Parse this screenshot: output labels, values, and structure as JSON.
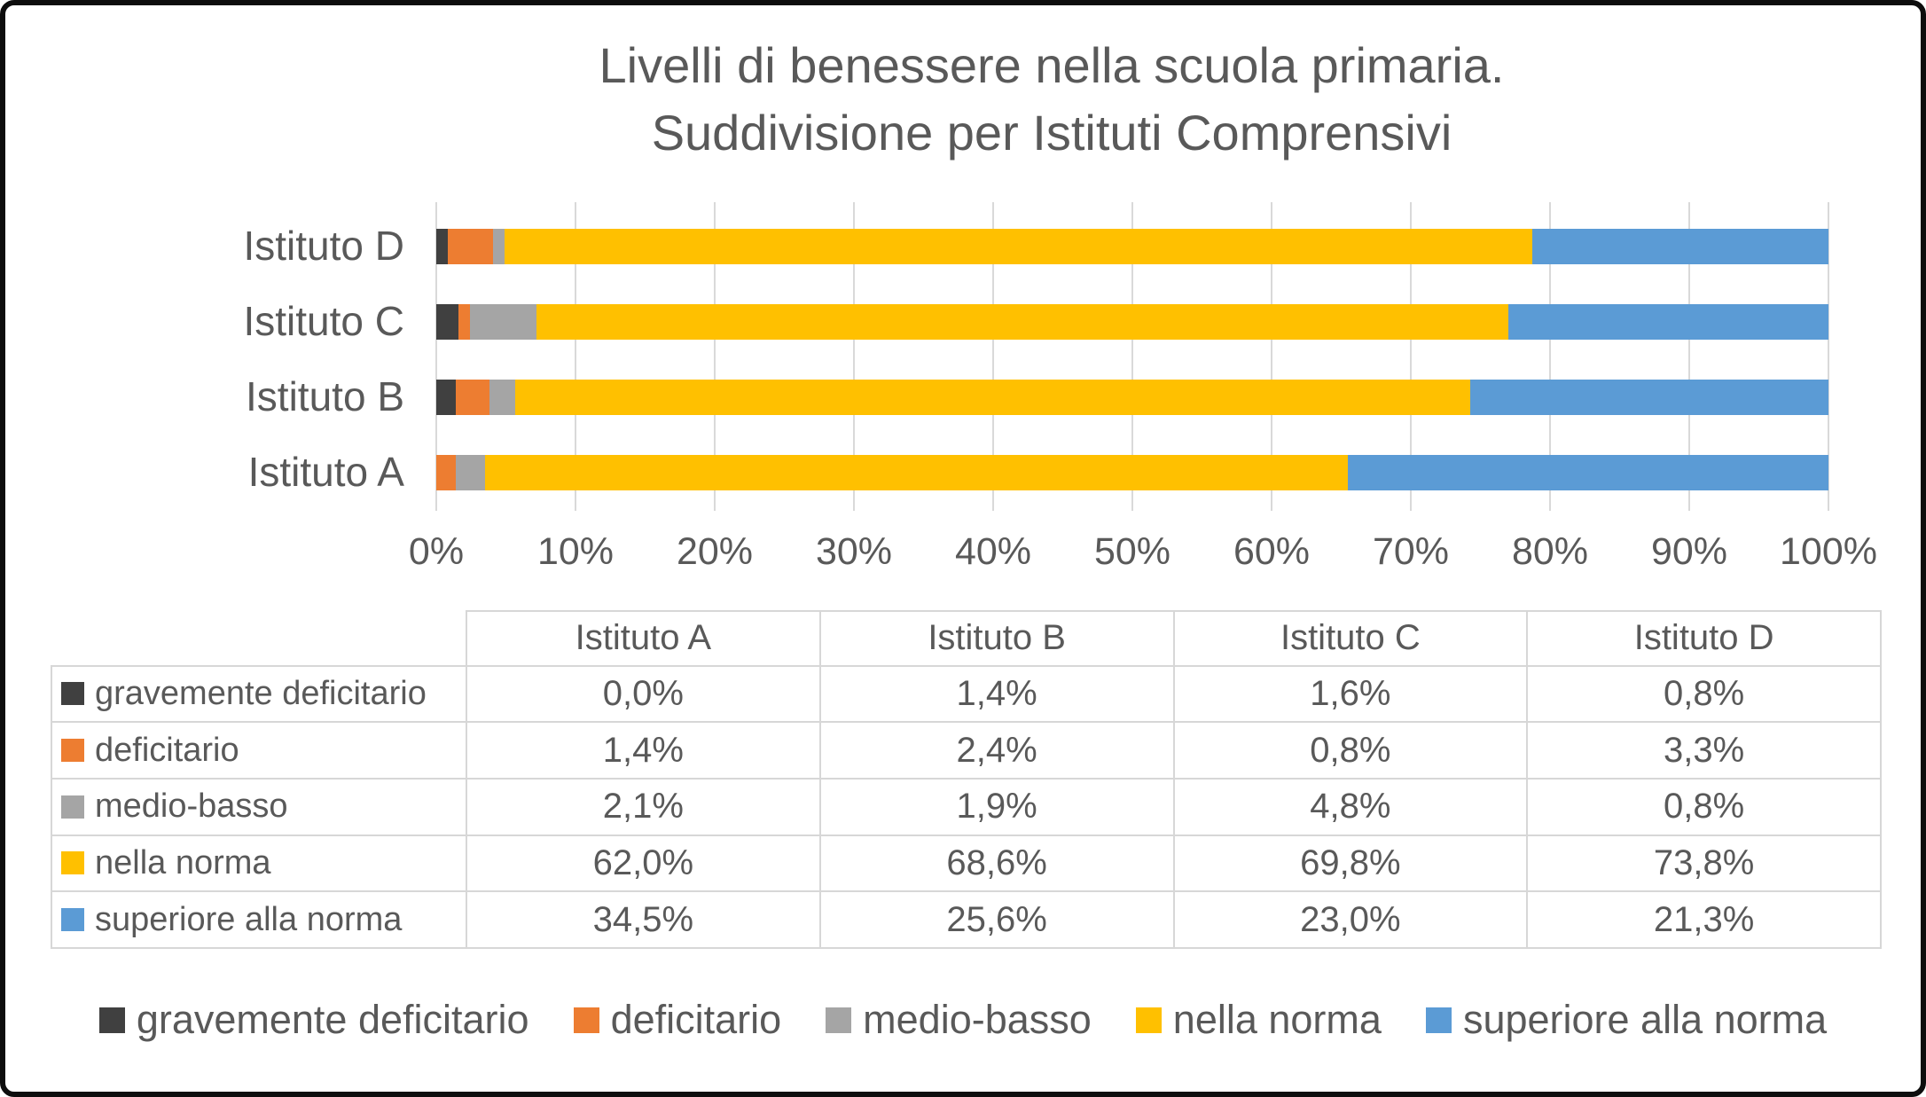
{
  "title": {
    "line1": "Livelli di benessere nella scuola primaria.",
    "line2": "Suddivisione per Istituti Comprensivi"
  },
  "colors": {
    "text": "#595959",
    "gridline": "#D9D9D9",
    "table_border": "#D7D7D7",
    "frame_border": "#0D0D0D",
    "background": "#FFFFFF"
  },
  "chart_data": {
    "type": "bar",
    "orientation": "horizontal",
    "stacked": true,
    "categories": [
      "Istituto A",
      "Istituto B",
      "Istituto C",
      "Istituto D"
    ],
    "bar_order_top_to_bottom": [
      "Istituto D",
      "Istituto C",
      "Istituto B",
      "Istituto A"
    ],
    "series": [
      {
        "name": "gravemente deficitario",
        "color": "#404040",
        "values": [
          0.0,
          1.4,
          1.6,
          0.8
        ]
      },
      {
        "name": "deficitario",
        "color": "#ED7D31",
        "values": [
          1.4,
          2.4,
          0.8,
          3.3
        ]
      },
      {
        "name": "medio-basso",
        "color": "#A5A5A5",
        "values": [
          2.1,
          1.9,
          4.8,
          0.8
        ]
      },
      {
        "name": "nella norma",
        "color": "#FFC000",
        "values": [
          62.0,
          68.6,
          69.8,
          73.8
        ]
      },
      {
        "name": "superiore alla norma",
        "color": "#5B9BD5",
        "values": [
          34.5,
          25.6,
          23.0,
          21.3
        ]
      }
    ],
    "x_ticks": [
      "0%",
      "10%",
      "20%",
      "30%",
      "40%",
      "50%",
      "60%",
      "70%",
      "80%",
      "90%",
      "100%"
    ],
    "xlim": [
      0,
      100
    ],
    "grid": true,
    "legend_position": "bottom"
  },
  "table": {
    "header": [
      "Istituto A",
      "Istituto B",
      "Istituto C",
      "Istituto D"
    ],
    "rows": [
      {
        "label": "gravemente deficitario",
        "color": "#404040",
        "values": [
          "0,0%",
          "1,4%",
          "1,6%",
          "0,8%"
        ]
      },
      {
        "label": "deficitario",
        "color": "#ED7D31",
        "values": [
          "1,4%",
          "2,4%",
          "0,8%",
          "3,3%"
        ]
      },
      {
        "label": "medio-basso",
        "color": "#A5A5A5",
        "values": [
          "2,1%",
          "1,9%",
          "4,8%",
          "0,8%"
        ]
      },
      {
        "label": "nella norma",
        "color": "#FFC000",
        "values": [
          "62,0%",
          "68,6%",
          "69,8%",
          "73,8%"
        ]
      },
      {
        "label": "superiore alla norma",
        "color": "#5B9BD5",
        "values": [
          "34,5%",
          "25,6%",
          "23,0%",
          "21,3%"
        ]
      }
    ]
  },
  "legend": {
    "items": [
      {
        "label": "gravemente deficitario",
        "color": "#404040"
      },
      {
        "label": "deficitario",
        "color": "#ED7D31"
      },
      {
        "label": "medio-basso",
        "color": "#A5A5A5"
      },
      {
        "label": "nella norma",
        "color": "#FFC000"
      },
      {
        "label": "superiore alla norma",
        "color": "#5B9BD5"
      }
    ]
  }
}
